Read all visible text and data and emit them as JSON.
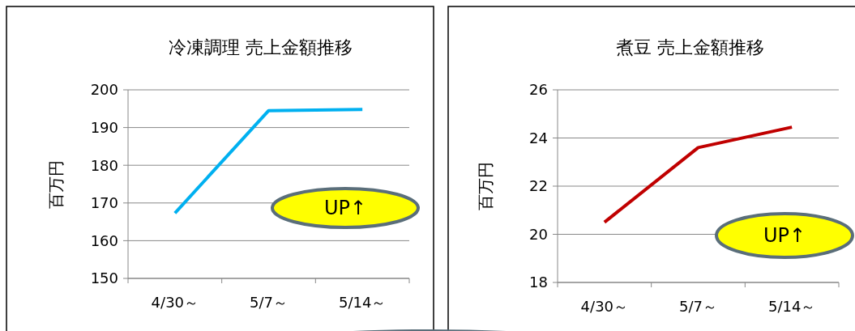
{
  "chart_data": [
    {
      "type": "line",
      "title": "冷凍調理  売上金額推移",
      "ylabel": "百万円",
      "categories": [
        "4/30～",
        "5/7～",
        "5/14～"
      ],
      "series": [
        {
          "color": "#00b0f0",
          "values": [
            167.3,
            194.5,
            194.8
          ]
        }
      ],
      "ylim": [
        150,
        200
      ],
      "yticks": [
        150,
        160,
        170,
        180,
        190,
        200
      ],
      "grid": "y",
      "marker": "none",
      "annotations": [
        "UP↑"
      ]
    },
    {
      "type": "line",
      "title": "煮豆  売上金額推移",
      "ylabel": "百万円",
      "categories": [
        "4/30～",
        "5/7～",
        "5/14～"
      ],
      "series": [
        {
          "color": "#c00000",
          "values": [
            20.5,
            23.6,
            24.45
          ]
        }
      ],
      "ylim": [
        18,
        26
      ],
      "yticks": [
        18,
        20,
        22,
        24,
        26
      ],
      "grid": "y",
      "marker": "none",
      "annotations": [
        "UP↑"
      ]
    }
  ]
}
